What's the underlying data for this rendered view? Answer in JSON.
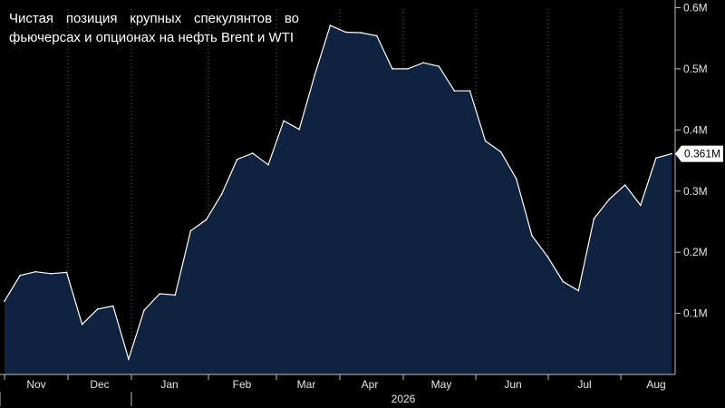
{
  "title": "Чистая позиция крупных спекулянтов во фьючерсах и опционах на нефть Brent и WTI",
  "colors": {
    "background": "#000000",
    "area_fill": "#0f2340",
    "line": "#ffffff",
    "grid": "#5a5a5a",
    "text": "#e6e6e6"
  },
  "chart_data": {
    "type": "area",
    "title": "Чистая позиция крупных спекулянтов во фьючерсах и опционах на нефть Brent и WTI",
    "xlabel": "",
    "ylabel": "",
    "x_tick_labels": [
      "Nov",
      "Dec",
      "Jan",
      "Feb",
      "Mar",
      "Apr",
      "May",
      "Jun",
      "Jul",
      "Aug"
    ],
    "year_label": "2026",
    "y_ticks": [
      0.1,
      0.2,
      0.3,
      0.4,
      0.5,
      0.6
    ],
    "y_tick_labels": [
      "0.1M",
      "0.2M",
      "0.3M",
      "0.4M",
      "0.5M",
      "0.6M"
    ],
    "ylim": [
      0,
      0.6
    ],
    "grid": "vertical dotted",
    "last_value_label": "0.361M",
    "series": [
      {
        "values": [
          0.12,
          0.162,
          0.168,
          0.165,
          0.167,
          0.082,
          0.107,
          0.112,
          0.025,
          0.105,
          0.132,
          0.13,
          0.235,
          0.253,
          0.295,
          0.352,
          0.362,
          0.343,
          0.415,
          0.401,
          0.49,
          0.571,
          0.56,
          0.559,
          0.554,
          0.5,
          0.5,
          0.51,
          0.504,
          0.464,
          0.464,
          0.382,
          0.364,
          0.32,
          0.227,
          0.193,
          0.152,
          0.137,
          0.255,
          0.287,
          0.31,
          0.277,
          0.354,
          0.361
        ]
      }
    ]
  }
}
